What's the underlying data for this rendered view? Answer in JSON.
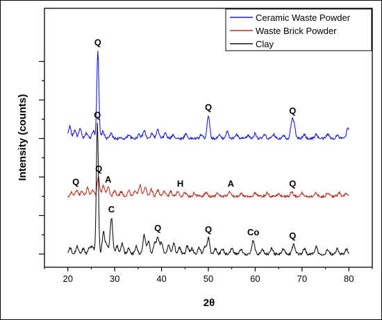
{
  "chart_data": {
    "type": "line",
    "title": "",
    "xlabel": "2θ",
    "ylabel": "Intensity (counts)",
    "xlim": [
      15,
      85
    ],
    "xticks": [
      "20",
      "30",
      "40",
      "50",
      "60",
      "70",
      "80"
    ],
    "y_tick_labels_shown": false,
    "grid": false,
    "legend_position": "top-right",
    "series": [
      {
        "name": "Ceramic Waste Powder",
        "color": "#1a1adc",
        "offset": 300,
        "peaks": [
          [
            20.4,
            32
          ],
          [
            21.5,
            22
          ],
          [
            22.6,
            25
          ],
          [
            24.0,
            14
          ],
          [
            25.4,
            20
          ],
          [
            26.4,
            228
          ],
          [
            27.5,
            18
          ],
          [
            29.2,
            12
          ],
          [
            33.0,
            10
          ],
          [
            35.2,
            12
          ],
          [
            36.3,
            20
          ],
          [
            38.0,
            13
          ],
          [
            39.2,
            22
          ],
          [
            40.8,
            14
          ],
          [
            42.5,
            10
          ],
          [
            45.2,
            12
          ],
          [
            48.5,
            10
          ],
          [
            50.0,
            60
          ],
          [
            52.3,
            9
          ],
          [
            54.0,
            18
          ],
          [
            56.0,
            10
          ],
          [
            58.5,
            8
          ],
          [
            60.0,
            13
          ],
          [
            62.0,
            9
          ],
          [
            64.0,
            10
          ],
          [
            66.0,
            9
          ],
          [
            67.8,
            40
          ],
          [
            68.3,
            35
          ],
          [
            70.5,
            10
          ],
          [
            73.0,
            11
          ],
          [
            75.5,
            12
          ],
          [
            77.5,
            9
          ],
          [
            79.8,
            28
          ]
        ],
        "peak_labels": [
          [
            "Q",
            26.4
          ],
          [
            "Q",
            50.0
          ],
          [
            "Q",
            68.0
          ]
        ]
      },
      {
        "name": "Waste Brick Powder",
        "color": "#b83222",
        "offset": 150,
        "peaks": [
          [
            20.8,
            10
          ],
          [
            21.9,
            16
          ],
          [
            23.0,
            14
          ],
          [
            24.2,
            22
          ],
          [
            25.3,
            18
          ],
          [
            26.5,
            50
          ],
          [
            27.6,
            28
          ],
          [
            28.6,
            22
          ],
          [
            30.0,
            14
          ],
          [
            31.4,
            12
          ],
          [
            33.0,
            16
          ],
          [
            34.3,
            14
          ],
          [
            35.4,
            28
          ],
          [
            36.5,
            22
          ],
          [
            37.8,
            18
          ],
          [
            39.2,
            16
          ],
          [
            40.6,
            14
          ],
          [
            42.0,
            12
          ],
          [
            43.5,
            12
          ],
          [
            45.0,
            10
          ],
          [
            47.0,
            8
          ],
          [
            49.5,
            10
          ],
          [
            52.0,
            8
          ],
          [
            54.5,
            12
          ],
          [
            57.0,
            8
          ],
          [
            60.0,
            8
          ],
          [
            62.5,
            8
          ],
          [
            65.0,
            7
          ],
          [
            67.8,
            12
          ],
          [
            70.0,
            8
          ],
          [
            73.0,
            8
          ],
          [
            75.5,
            9
          ],
          [
            78.0,
            10
          ],
          [
            79.5,
            8
          ]
        ],
        "peak_labels": [
          [
            "Q",
            21.7
          ],
          [
            "Q",
            26.6
          ],
          [
            "A",
            28.6
          ],
          [
            "H",
            44.0
          ],
          [
            "A",
            54.8
          ],
          [
            "Q",
            68.0
          ]
        ]
      },
      {
        "name": "Clay",
        "color": "#111111",
        "offset": 0,
        "peaks": [
          [
            20.5,
            15
          ],
          [
            22.0,
            20
          ],
          [
            23.3,
            14
          ],
          [
            24.6,
            18
          ],
          [
            25.3,
            20
          ],
          [
            26.3,
            340
          ],
          [
            27.6,
            55
          ],
          [
            28.3,
            22
          ],
          [
            29.3,
            95
          ],
          [
            30.5,
            20
          ],
          [
            31.6,
            28
          ],
          [
            33.0,
            16
          ],
          [
            34.6,
            20
          ],
          [
            36.3,
            48
          ],
          [
            37.2,
            35
          ],
          [
            38.5,
            26
          ],
          [
            39.2,
            45
          ],
          [
            40.0,
            30
          ],
          [
            41.5,
            22
          ],
          [
            42.6,
            28
          ],
          [
            43.8,
            18
          ],
          [
            45.5,
            20
          ],
          [
            46.5,
            15
          ],
          [
            48.0,
            16
          ],
          [
            49.2,
            18
          ],
          [
            50.0,
            42
          ],
          [
            51.5,
            14
          ],
          [
            53.0,
            13
          ],
          [
            55.0,
            14
          ],
          [
            57.0,
            12
          ],
          [
            59.6,
            35
          ],
          [
            61.5,
            12
          ],
          [
            63.5,
            14
          ],
          [
            66.0,
            13
          ],
          [
            68.2,
            26
          ],
          [
            70.5,
            14
          ],
          [
            73.0,
            20
          ],
          [
            75.5,
            12
          ],
          [
            77.5,
            14
          ],
          [
            79.5,
            12
          ]
        ],
        "peak_labels": [
          [
            "Q",
            26.3
          ],
          [
            "C",
            29.3
          ],
          [
            "Q",
            39.2
          ],
          [
            "Q",
            50.0
          ],
          [
            "Co",
            59.6
          ],
          [
            "Q",
            68.0
          ]
        ]
      }
    ]
  }
}
